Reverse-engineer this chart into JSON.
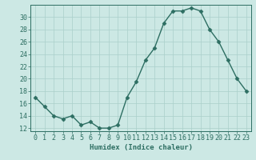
{
  "x": [
    0,
    1,
    2,
    3,
    4,
    5,
    6,
    7,
    8,
    9,
    10,
    11,
    12,
    13,
    14,
    15,
    16,
    17,
    18,
    19,
    20,
    21,
    22,
    23
  ],
  "y": [
    17,
    15.5,
    14,
    13.5,
    14,
    12.5,
    13,
    12,
    12,
    12.5,
    17,
    19.5,
    23,
    25,
    29,
    31,
    31,
    31.5,
    31,
    28,
    26,
    23,
    20,
    18
  ],
  "line_color": "#2d6e62",
  "marker": "D",
  "marker_size": 2.5,
  "bg_color": "#cce8e4",
  "grid_color": "#aacfca",
  "axis_color": "#2d6e62",
  "xlabel": "Humidex (Indice chaleur)",
  "xlim": [
    -0.5,
    23.5
  ],
  "ylim": [
    11.5,
    32
  ],
  "yticks": [
    12,
    14,
    16,
    18,
    20,
    22,
    24,
    26,
    28,
    30
  ],
  "xticks": [
    0,
    1,
    2,
    3,
    4,
    5,
    6,
    7,
    8,
    9,
    10,
    11,
    12,
    13,
    14,
    15,
    16,
    17,
    18,
    19,
    20,
    21,
    22,
    23
  ],
  "xlabel_fontsize": 6.5,
  "tick_fontsize": 6
}
